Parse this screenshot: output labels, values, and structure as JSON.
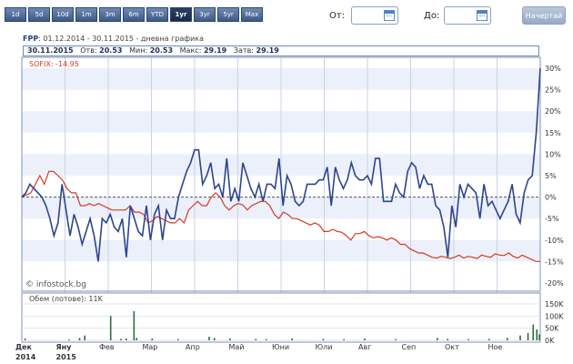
{
  "toolbar": {
    "ranges": [
      "1d",
      "5d",
      "10d",
      "1m",
      "3m",
      "6m",
      "YTD",
      "1yr",
      "3yr",
      "5yr",
      "Max"
    ],
    "active": "1yr",
    "from_label": "От:",
    "to_label": "До:",
    "start_button": "Начертай"
  },
  "header": {
    "symbol": "FPP",
    "period": ": 01.12.2014 - 30.11.2015 - дневна графика"
  },
  "infobar": {
    "date": "30.11.2015",
    "open_label": "Отв:",
    "open": "20.53",
    "low_label": "Мин:",
    "low": "20.53",
    "high_label": "Макс:",
    "high": "29.19",
    "close_label": "Затв:",
    "close": "29.19"
  },
  "colors": {
    "fpp": "#2b4590",
    "sofix": "#d63a20",
    "volume": "#2f6e36",
    "band": "#ecf0fa"
  },
  "watermark": "© infostock.bg",
  "chart_data": {
    "type": "line",
    "x_labels": [
      "Дек",
      "Яну",
      "Фев",
      "Мар",
      "Апр",
      "Май",
      "Юни",
      "Юли",
      "Авг",
      "Сеп",
      "Окт",
      "Ное"
    ],
    "x_sub_labels": [
      "2014",
      "2015"
    ],
    "y_ticks": [
      "30%",
      "25%",
      "20%",
      "15%",
      "10%",
      "5%",
      "0%",
      "-5%",
      "-10%",
      "-15%",
      "-20%"
    ],
    "ylim": [
      -20,
      30
    ],
    "series": [
      {
        "name": "FPP",
        "values": [
          0,
          1,
          3,
          2,
          1,
          0,
          -2,
          -5,
          -9,
          -6,
          3,
          -3,
          -9,
          -4,
          -7,
          -11,
          -8,
          -5,
          -9,
          -15,
          -5,
          -6,
          -4,
          -7,
          -8,
          -5,
          -14,
          -2,
          -5,
          -8,
          -9,
          -2,
          -10,
          -4,
          -2,
          -10,
          -3,
          -5,
          -5,
          0,
          3,
          6,
          8,
          11,
          11,
          3,
          5,
          8,
          2,
          3,
          0,
          9,
          -1,
          2,
          -1,
          8,
          5,
          2,
          0,
          3,
          -1,
          3,
          3,
          2,
          9,
          -2,
          5,
          3,
          -1,
          -2,
          -1,
          3,
          3,
          3,
          4,
          4,
          7,
          -2,
          7,
          4,
          2,
          4,
          8,
          5,
          4,
          4,
          5,
          3,
          9,
          9,
          -1,
          -1,
          -1,
          3,
          1,
          0,
          6,
          8,
          7,
          2,
          5,
          3,
          3,
          -2,
          -3,
          -7,
          -14,
          -2,
          -7,
          3,
          0,
          3,
          2,
          1,
          -5,
          3,
          -2,
          -1,
          -3,
          -5,
          -3,
          -1,
          3,
          -4,
          -6,
          1,
          4,
          5,
          15,
          30
        ]
      },
      {
        "name": "SOFIX: -14.95",
        "values": [
          0,
          0.5,
          1,
          3,
          5,
          3,
          6,
          6,
          5,
          4,
          2,
          1,
          1,
          -2,
          -2,
          -1.5,
          -2,
          -1.5,
          -2,
          -2.5,
          -3,
          -3,
          -3,
          -3,
          -2,
          -3.5,
          -3.5,
          -4,
          -6,
          -5.5,
          -4.5,
          -5,
          -5.5,
          -6,
          -6,
          -5,
          -6,
          -3,
          -2,
          -1,
          -2,
          -2,
          0,
          1,
          0,
          -2,
          -3,
          -2,
          -1.5,
          -1.8,
          -3,
          -2,
          -1.5,
          -1,
          -1,
          -2,
          -4,
          -5,
          -3.5,
          -4,
          -5,
          -5,
          -5.5,
          -6,
          -6.5,
          -6,
          -6.5,
          -8,
          -8,
          -7.5,
          -8,
          -8.2,
          -9,
          -10,
          -8.5,
          -8.5,
          -8,
          -9,
          -9.5,
          -9.2,
          -9.5,
          -10,
          -9.5,
          -10,
          -11,
          -11,
          -12,
          -12.5,
          -13,
          -13,
          -13.5,
          -14,
          -14.2,
          -13.8,
          -14,
          -14.3,
          -14,
          -13.5,
          -14.2,
          -13.8,
          -14,
          -14.3,
          -13.5,
          -13.8,
          -14,
          -13.2,
          -13.5,
          -13.6,
          -13,
          -13.8,
          -14.2,
          -13.5,
          -14,
          -14.5,
          -14.95,
          -15
        ]
      }
    ],
    "volume": {
      "label": "Обем (лотове): 11K",
      "y_ticks": [
        "150K",
        "100K",
        "50K",
        "0K"
      ],
      "bars": [
        {
          "t": 0.005,
          "v": 8,
          "c": "red"
        },
        {
          "t": 0.09,
          "v": 4
        },
        {
          "t": 0.11,
          "v": 10
        },
        {
          "t": 0.12,
          "v": 20
        },
        {
          "t": 0.17,
          "v": 100
        },
        {
          "t": 0.19,
          "v": 6
        },
        {
          "t": 0.2,
          "v": 8
        },
        {
          "t": 0.215,
          "v": 120
        },
        {
          "t": 0.22,
          "v": 10
        },
        {
          "t": 0.25,
          "v": 8
        },
        {
          "t": 0.3,
          "v": 5
        },
        {
          "t": 0.36,
          "v": 15
        },
        {
          "t": 0.37,
          "v": 10
        },
        {
          "t": 0.4,
          "v": 8
        },
        {
          "t": 0.45,
          "v": 6
        },
        {
          "t": 0.47,
          "v": 5
        },
        {
          "t": 0.52,
          "v": 8
        },
        {
          "t": 0.58,
          "v": 6
        },
        {
          "t": 0.62,
          "v": 5
        },
        {
          "t": 0.66,
          "v": 8
        },
        {
          "t": 0.72,
          "v": 5
        },
        {
          "t": 0.8,
          "v": 10
        },
        {
          "t": 0.82,
          "v": 6
        },
        {
          "t": 0.86,
          "v": 5
        },
        {
          "t": 0.9,
          "v": 6
        },
        {
          "t": 0.935,
          "v": 10
        },
        {
          "t": 0.96,
          "v": 20
        },
        {
          "t": 0.975,
          "v": 30
        },
        {
          "t": 0.985,
          "v": 65
        },
        {
          "t": 0.992,
          "v": 45
        },
        {
          "t": 0.997,
          "v": 25
        }
      ]
    }
  }
}
